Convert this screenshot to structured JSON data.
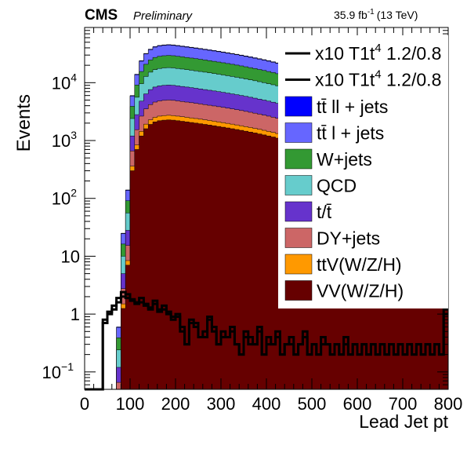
{
  "header": {
    "experiment": "CMS",
    "status": "Preliminary",
    "lumi": "35.9 fb",
    "lumi_sup": "-1",
    "energy": "(13 TeV)"
  },
  "chart_data": {
    "type": "stacked-histogram",
    "xlabel": "Lead Jet pt",
    "ylabel": "Events",
    "xlim": [
      0,
      800
    ],
    "ylim": [
      0.05,
      90000
    ],
    "ylog": true,
    "bin_width": 10,
    "x_ticks": [
      "0",
      "100",
      "200",
      "300",
      "400",
      "500",
      "600",
      "700",
      "800"
    ],
    "y_ticks": [
      {
        "value": 0.1,
        "base": "10",
        "exp": "−1"
      },
      {
        "value": 1,
        "base": "1",
        "exp": ""
      },
      {
        "value": 10,
        "base": "10",
        "exp": ""
      },
      {
        "value": 100,
        "base": "10",
        "exp": "2"
      },
      {
        "value": 1000,
        "base": "10",
        "exp": "3"
      },
      {
        "value": 10000,
        "base": "10",
        "exp": "4"
      }
    ],
    "legend_position": "top-right",
    "bin_edges_note": "bins of 10 GeV from 0 to 800",
    "total": [
      0,
      0,
      0,
      0,
      0,
      0,
      0.02,
      0.6,
      25,
      140,
      6000,
      14000,
      24000,
      32000,
      38000,
      42000,
      44000,
      45000,
      45500,
      45000,
      44000,
      43000,
      42000,
      41000,
      40000,
      39000,
      38000,
      37000,
      36000,
      35000,
      34000,
      33000,
      32000,
      31000,
      30000,
      29000,
      28000,
      27000,
      26000,
      25000,
      24000,
      23000,
      22000,
      21000,
      20000,
      19000,
      18000,
      17000,
      16000,
      15000,
      14000,
      13000,
      12500,
      12000,
      11500,
      11000,
      10500,
      10000,
      9500,
      9000,
      8500,
      8000,
      7500,
      7000,
      6600,
      6200,
      5800,
      5400,
      5000,
      4700,
      4400,
      4100,
      3800,
      3500,
      3200,
      3000,
      2800,
      2600,
      2400,
      2200
    ],
    "series": [
      {
        "name": "tt̄ ll + jets",
        "color": "#0000ff",
        "fractions": 0.02
      },
      {
        "name": "tt̄ l + jets",
        "color": "#6666ff",
        "fractions": 0.33
      },
      {
        "name": "W+jets",
        "color": "#339933",
        "fractions": 0.25
      },
      {
        "name": "QCD",
        "color": "#66cccc",
        "fractions": 0.2
      },
      {
        "name": "t/t̄",
        "color": "#6633cc",
        "fractions": 0.09
      },
      {
        "name": "DY+jets",
        "color": "#cc6666",
        "fractions": 0.05
      },
      {
        "name": "ttV(W/Z/H)",
        "color": "#ff9900",
        "fractions": 0.01
      },
      {
        "name": "VV(W/Z/H)",
        "color": "#660000",
        "fractions": 0.05
      }
    ],
    "signals": [
      {
        "name": "x10 T1t",
        "sup": "4",
        "tail": " 1.2/0.8",
        "color": "#000000",
        "values": [
          0,
          0,
          0,
          0.05,
          0.8,
          1.1,
          1.4,
          1.9,
          2.4,
          2.2,
          1.8,
          1.6,
          1.9,
          1.5,
          1.3,
          1.7,
          1.2,
          1.4,
          1.1,
          0.9,
          1.0,
          0.6,
          0.3,
          0.8,
          0.7,
          0.4,
          0.5,
          0.9,
          0.6,
          0.3,
          0.5,
          0.4,
          0.6,
          0.3,
          0.2,
          0.5,
          0.4,
          0.3,
          0.6,
          0.2,
          0.4,
          0.3,
          0.5,
          0.2,
          0.3,
          0.4,
          0.2,
          0.3,
          0.5,
          0.2,
          0.3,
          0.2,
          0.4,
          0.3,
          0.2,
          0.3,
          0.2,
          0.4,
          0.2,
          0.3,
          0.2,
          0.3,
          0.2,
          0.3,
          0.2,
          0.3,
          0.2,
          0.3,
          0.2,
          0.3,
          0.2,
          0.3,
          0.2,
          0.3,
          0.2,
          0.3,
          0.2,
          0.3,
          0.2,
          1.2
        ]
      },
      {
        "name": "x10 T1t",
        "sup": "4",
        "tail": " 1.2/0.8",
        "color": "#000000",
        "values": [
          0,
          0,
          0,
          0.05,
          0.7,
          1.0,
          1.2,
          1.6,
          2.0,
          1.9,
          1.7,
          1.5,
          1.6,
          1.4,
          1.2,
          1.5,
          1.1,
          1.2,
          1.0,
          0.8,
          0.9,
          0.5,
          0.3,
          0.7,
          0.6,
          0.4,
          0.4,
          0.8,
          0.5,
          0.3,
          0.4,
          0.4,
          0.5,
          0.3,
          0.2,
          0.4,
          0.3,
          0.3,
          0.5,
          0.2,
          0.3,
          0.3,
          0.4,
          0.2,
          0.3,
          0.3,
          0.2,
          0.3,
          0.4,
          0.2,
          0.3,
          0.2,
          0.3,
          0.3,
          0.2,
          0.3,
          0.2,
          0.3,
          0.2,
          0.3,
          0.2,
          0.3,
          0.2,
          0.3,
          0.2,
          0.3,
          0.2,
          0.3,
          0.2,
          0.3,
          0.2,
          0.3,
          0.2,
          0.3,
          0.2,
          0.3,
          0.2,
          0.3,
          0.2,
          1.0
        ]
      }
    ]
  }
}
